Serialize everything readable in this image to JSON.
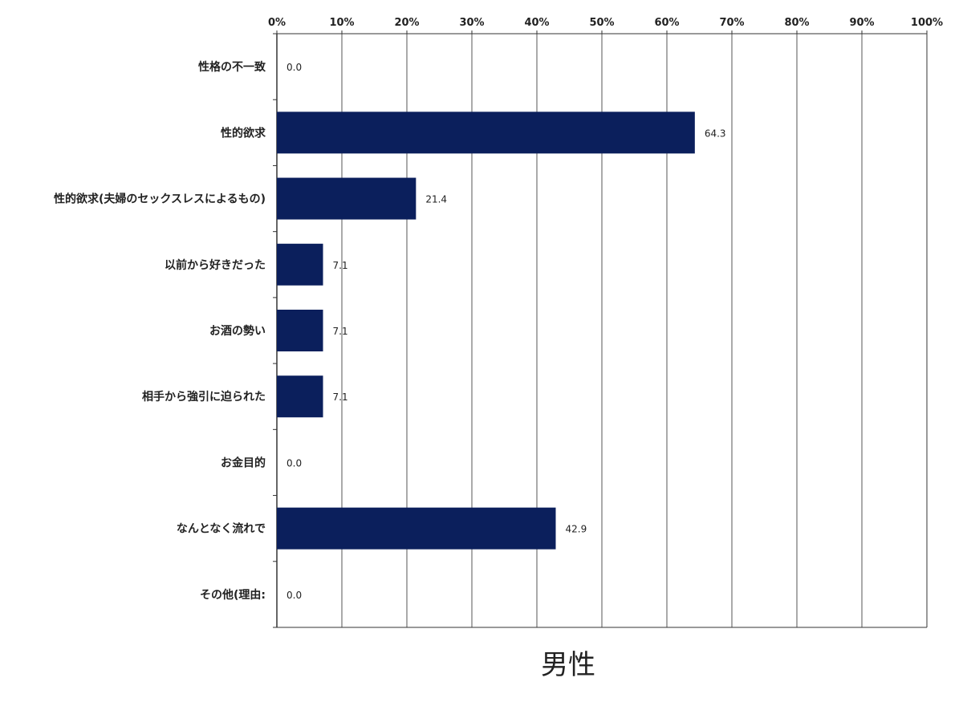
{
  "chart_data": {
    "type": "bar",
    "orientation": "horizontal",
    "title": "男性",
    "categories": [
      "性格の不一致",
      "性的欲求",
      "性的欲求(夫婦のセックスレスによるもの)",
      "以前から好きだった",
      "お酒の勢い",
      "相手から強引に迫られた",
      "お金目的",
      "なんとなく流れで",
      "その他(理由:"
    ],
    "values": [
      0.0,
      64.3,
      21.4,
      7.1,
      7.1,
      7.1,
      0.0,
      42.9,
      0.0
    ],
    "value_labels": [
      "0.0",
      "64.3",
      "21.4",
      "7.1",
      "7.1",
      "7.1",
      "0.0",
      "42.9",
      "0.0"
    ],
    "xlim": [
      0,
      100
    ],
    "x_ticks": [
      0,
      10,
      20,
      30,
      40,
      50,
      60,
      70,
      80,
      90,
      100
    ],
    "x_tick_labels": [
      "0%",
      "10%",
      "20%",
      "30%",
      "40%",
      "50%",
      "60%",
      "70%",
      "80%",
      "90%",
      "100%"
    ],
    "x_axis_position": "top",
    "grid": true,
    "bar_color": "#0b1f5c",
    "xlabel": "",
    "ylabel": ""
  }
}
